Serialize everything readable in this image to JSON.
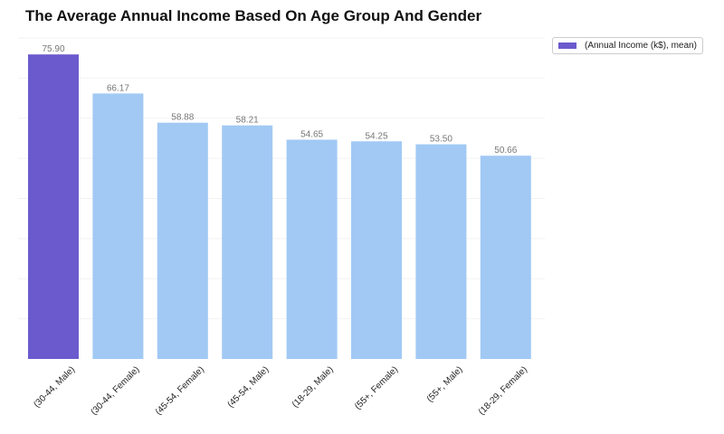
{
  "chart_data": {
    "type": "bar",
    "title": "The Average Annual Income Based On Age Group And Gender",
    "xlabel": "",
    "ylabel": "",
    "ylim": [
      0,
      80
    ],
    "grid": true,
    "legend_position": "top-right, outside plot",
    "categories": [
      "(30-44, Male)",
      "(30-44, Female)",
      "(45-54, Female)",
      "(45-54, Male)",
      "(18-29, Male)",
      "(55+, Female)",
      "(55+, Male)",
      "(18-29, Female)"
    ],
    "series": [
      {
        "name": "(Annual Income (k$), mean)",
        "values": [
          75.9,
          66.17,
          58.88,
          58.21,
          54.65,
          54.25,
          53.5,
          50.66
        ],
        "value_labels": [
          "75.90",
          "66.17",
          "58.88",
          "58.21",
          "54.65",
          "54.25",
          "53.50",
          "50.66"
        ]
      }
    ],
    "colors": {
      "highlight": "#6a5acd",
      "default": "#a1c9f4",
      "value_label": "#777777",
      "grid": "#f2f2f2"
    }
  }
}
